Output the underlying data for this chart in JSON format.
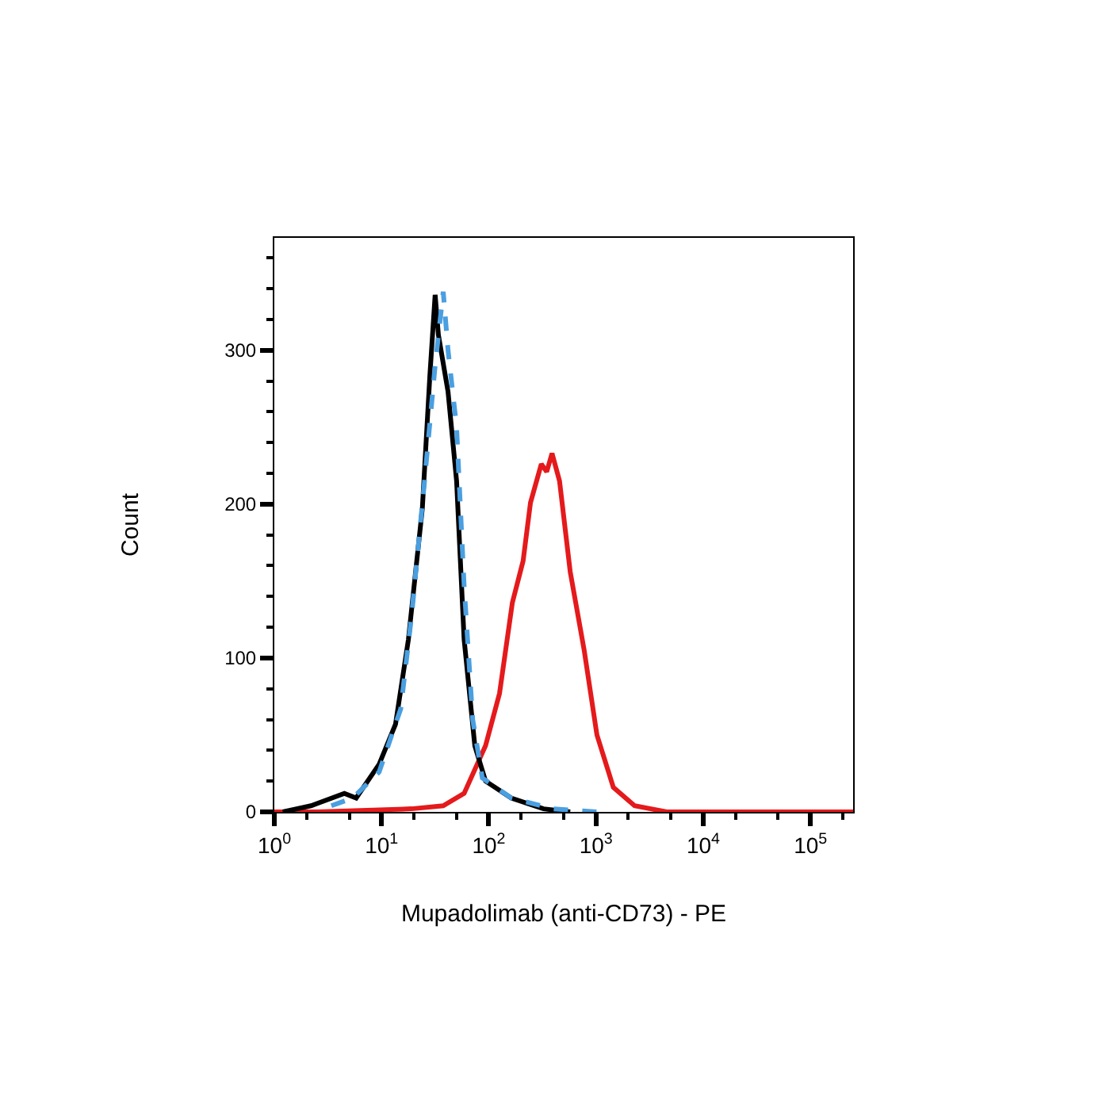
{
  "chart_data": {
    "type": "line",
    "xlabel": "Mupadolimab (anti-CD73) - PE",
    "ylabel": "Count",
    "log": "x",
    "xlim": [
      1,
      250000
    ],
    "xticks": [
      {
        "value": 1,
        "label": "10$^{0}$"
      },
      {
        "value": 10,
        "label": "10$^{1}$"
      },
      {
        "value": 100,
        "label": "10$^{2}$"
      },
      {
        "value": 1000,
        "label": "10$^{3}$"
      },
      {
        "value": 10000,
        "label": "10$^{4}$"
      },
      {
        "value": 100000,
        "label": "10$^{5}$"
      }
    ],
    "ylim": [
      0,
      373
    ],
    "yticks": [
      0,
      100,
      200,
      300
    ],
    "marker": "none",
    "series": [
      {
        "color": "#e41a1c",
        "line_style": "solid",
        "x": [
          1,
          2.5,
          19.1,
          37.6,
          58.9,
          93.3,
          126,
          166,
          209,
          245,
          309,
          347,
          389,
          457,
          575,
          776,
          1020,
          1450,
          2290,
          4570,
          250000
        ],
        "values": [
          0,
          0,
          2,
          4,
          12,
          43,
          77,
          136,
          163,
          201,
          226,
          221,
          233,
          215,
          156,
          105,
          50,
          16,
          4,
          0,
          0
        ]
      },
      {
        "color": "#000000",
        "line_style": "solid",
        "x": [
          1.2,
          2.2,
          4.5,
          5.8,
          9.5,
          13.5,
          17.8,
          24,
          28.2,
          31.6,
          33.9,
          41.7,
          50.1,
          58.9,
          74.1,
          93.3,
          162,
          324,
          575
        ],
        "values": [
          0,
          4,
          12,
          9,
          31,
          57,
          112,
          197,
          283,
          336,
          310,
          273,
          215,
          112,
          43,
          20,
          9,
          2,
          0
        ]
      },
      {
        "color": "#4a9fe0",
        "line_style": "dashed",
        "x": [
          3.4,
          5.4,
          9.5,
          15.1,
          19.1,
          25.1,
          31.6,
          37.6,
          41.7,
          50.1,
          58.9,
          70.8,
          87.1,
          162,
          398,
          1020
        ],
        "values": [
          4,
          9,
          26,
          67,
          128,
          214,
          290,
          338,
          300,
          250,
          147,
          60,
          22,
          9,
          2,
          0
        ]
      }
    ]
  }
}
